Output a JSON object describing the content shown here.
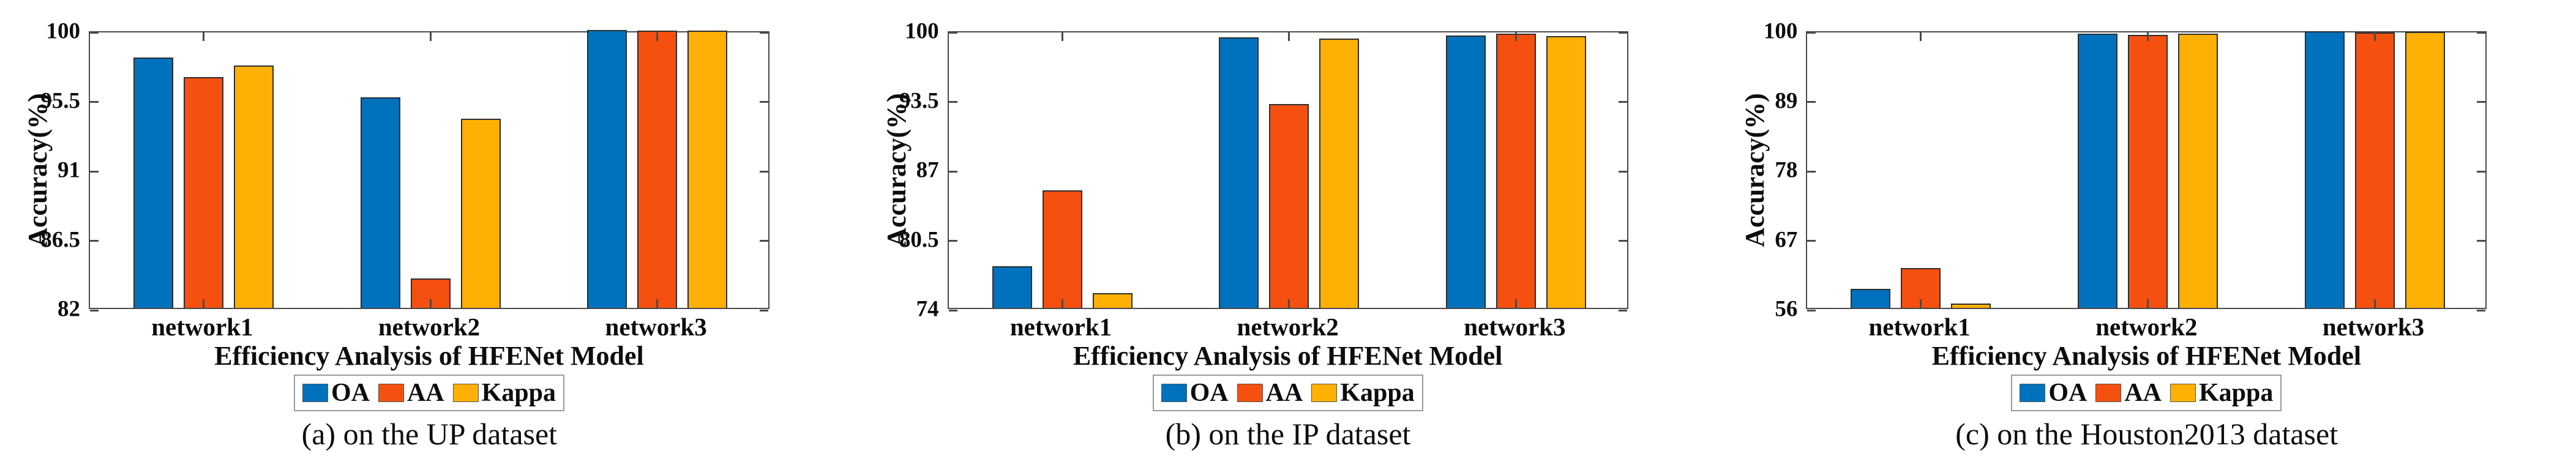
{
  "figure": {
    "background": "#ffffff",
    "axis_color": "#4a4a4a",
    "text_color": "#0d0d0d",
    "series_colors": {
      "OA": "#0072BD",
      "AA": "#F5500F",
      "Kappa": "#FFB005"
    }
  },
  "chart_data": [
    {
      "type": "bar",
      "caption": "(a) on the UP dataset",
      "xlabel": "Efficiency Analysis of HFENet Model",
      "ylabel": "Accuracy(%)",
      "categories": [
        "network1",
        "network2",
        "network3"
      ],
      "ylim": [
        82,
        100
      ],
      "yticks": [
        82,
        86.5,
        91,
        95.5,
        100
      ],
      "grid": false,
      "legend_position": "bottom",
      "legend_entries": [
        "OA",
        "AA",
        "Kappa"
      ],
      "series": [
        {
          "name": "OA",
          "color": "#0072BD",
          "values": [
            98.2,
            95.65,
            100
          ]
        },
        {
          "name": "AA",
          "color": "#F5500F",
          "values": [
            96.95,
            83.9,
            99.95
          ]
        },
        {
          "name": "Kappa",
          "color": "#FFB005",
          "values": [
            97.7,
            94.25,
            99.95
          ]
        }
      ]
    },
    {
      "type": "bar",
      "caption": "(b) on the IP dataset",
      "xlabel": "Efficiency Analysis of HFENet Model",
      "ylabel": "Accuracy(%)",
      "categories": [
        "network1",
        "network2",
        "network3"
      ],
      "ylim": [
        74,
        100
      ],
      "yticks": [
        74,
        80.5,
        87,
        93.5,
        100
      ],
      "grid": false,
      "legend_position": "bottom",
      "legend_entries": [
        "OA",
        "AA",
        "Kappa"
      ],
      "series": [
        {
          "name": "OA",
          "color": "#0072BD",
          "values": [
            77.9,
            99.3,
            99.5
          ]
        },
        {
          "name": "AA",
          "color": "#F5500F",
          "values": [
            85.0,
            93.1,
            99.65
          ]
        },
        {
          "name": "Kappa",
          "color": "#FFB005",
          "values": [
            75.4,
            99.2,
            99.45
          ]
        }
      ]
    },
    {
      "type": "bar",
      "caption": "(c) on the Houston2013 dataset",
      "xlabel": "Efficiency Analysis of HFENet Model",
      "ylabel": "Accuracy(%)",
      "categories": [
        "network1",
        "network2",
        "network3"
      ],
      "ylim": [
        56,
        100
      ],
      "yticks": [
        56,
        67,
        78,
        89,
        100
      ],
      "grid": false,
      "legend_position": "bottom",
      "legend_entries": [
        "OA",
        "AA",
        "Kappa"
      ],
      "series": [
        {
          "name": "OA",
          "color": "#0072BD",
          "values": [
            59.0,
            99.4,
            99.8
          ]
        },
        {
          "name": "AA",
          "color": "#F5500F",
          "values": [
            62.3,
            99.2,
            99.6
          ]
        },
        {
          "name": "Kappa",
          "color": "#FFB005",
          "values": [
            56.7,
            99.4,
            99.7
          ]
        }
      ]
    }
  ]
}
